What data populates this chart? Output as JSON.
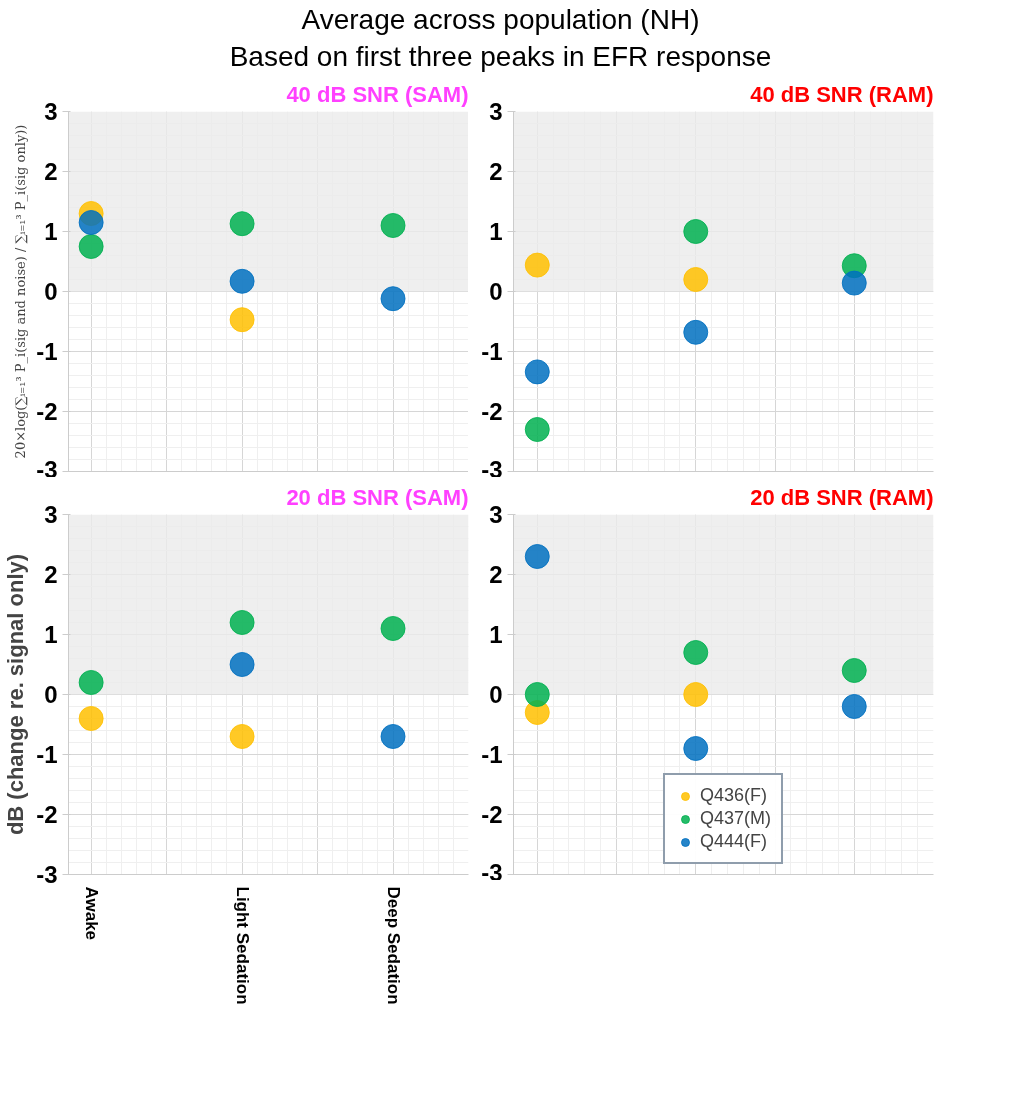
{
  "chart_data": [
    {
      "type": "other",
      "title": "Average across population (NH)",
      "subtitle": "Based on first three peaks in EFR response"
    },
    {
      "type": "scatter",
      "title": "40 dB SNR (SAM)",
      "ylabel": "20×log(∑ᵢ₌₁³ P_i(sig and noise) / ∑ᵢ₌₁³ P_i(sig only))",
      "categories": [
        null,
        null,
        null
      ],
      "ylim": [
        -3,
        3
      ],
      "yticks": [
        -3,
        -2,
        -1,
        0,
        1,
        2,
        3
      ],
      "grid": true,
      "marker": "circle",
      "tick_labels": "y",
      "bands": [
        {
          "axis": "y",
          "from": 0,
          "to": 3,
          "color": "#ebebeb"
        }
      ],
      "series": [
        {
          "color": "#ffc000",
          "values": [
            1.3,
            -0.47,
            null
          ]
        },
        {
          "color": "#00b050",
          "values": [
            0.75,
            1.13,
            1.1
          ]
        },
        {
          "color": "#0070c0",
          "values": [
            1.15,
            0.17,
            -0.12
          ]
        }
      ]
    },
    {
      "type": "scatter",
      "title": "40 dB SNR (RAM)",
      "categories": [
        null,
        null,
        null
      ],
      "ylim": [
        -3,
        3
      ],
      "yticks": [
        -3,
        -2,
        -1,
        0,
        1,
        2,
        3
      ],
      "grid": true,
      "marker": "circle",
      "tick_labels": "y",
      "bands": [
        {
          "axis": "y",
          "from": 0,
          "to": 3,
          "color": "#ebebeb"
        }
      ],
      "series": [
        {
          "color": "#ffc000",
          "values": [
            0.44,
            0.2,
            null
          ]
        },
        {
          "color": "#00b050",
          "values": [
            -2.3,
            1.0,
            0.43
          ]
        },
        {
          "color": "#0070c0",
          "values": [
            -1.34,
            -0.68,
            0.14
          ]
        }
      ]
    },
    {
      "type": "scatter",
      "title": "20 dB SNR (SAM)",
      "ylabel": "dB (change re. signal only)",
      "categories": [
        "Awake",
        "Light Sedation",
        "Deep Sedation"
      ],
      "ylim": [
        -3,
        3
      ],
      "yticks": [
        -3,
        -2,
        -1,
        0,
        1,
        2,
        3
      ],
      "grid": true,
      "marker": "circle",
      "bands": [
        {
          "axis": "y",
          "from": 0,
          "to": 3,
          "color": "#ebebeb"
        }
      ],
      "series": [
        {
          "color": "#ffc000",
          "values": [
            -0.4,
            -0.7,
            null
          ]
        },
        {
          "color": "#00b050",
          "values": [
            0.2,
            1.2,
            1.1
          ]
        },
        {
          "color": "#0070c0",
          "values": [
            null,
            0.5,
            -0.7
          ]
        }
      ]
    },
    {
      "type": "scatter",
      "title": "20 dB SNR (RAM)",
      "categories": [
        null,
        null,
        null
      ],
      "ylim": [
        -3,
        3
      ],
      "yticks": [
        -3,
        -2,
        -1,
        0,
        1,
        2,
        3
      ],
      "grid": true,
      "marker": "circle",
      "tick_labels": "y",
      "legend": "bottom",
      "bands": [
        {
          "axis": "y",
          "from": 0,
          "to": 3,
          "color": "#ebebeb"
        }
      ],
      "series": [
        {
          "name": "Q436(F)",
          "color": "#ffc000",
          "values": [
            -0.3,
            0.0,
            null
          ]
        },
        {
          "name": "Q437(M)",
          "color": "#00b050",
          "values": [
            0.0,
            0.7,
            0.4
          ]
        },
        {
          "name": "Q444(F)",
          "color": "#0070c0",
          "values": [
            2.3,
            -0.9,
            -0.2
          ]
        }
      ]
    }
  ]
}
